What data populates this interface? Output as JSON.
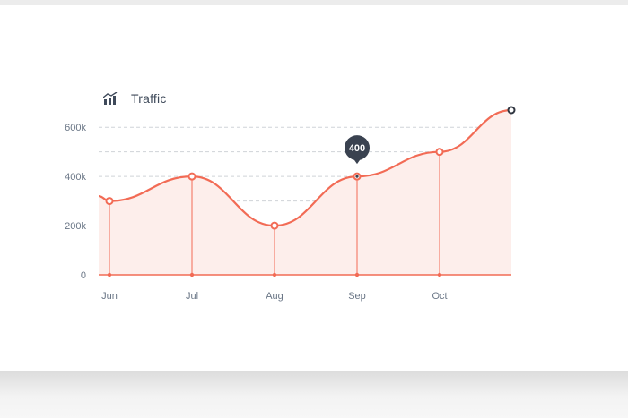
{
  "chart_title": "Traffic",
  "icons": {
    "header": "bar-chart-trend-icon"
  },
  "colors": {
    "line": "#f26b55",
    "fill": "#fdeeeb",
    "grid": "#cfd3d8",
    "tooltip": "#3a4250",
    "endpoint": "#2f3540"
  },
  "chart_data": {
    "type": "area",
    "title": "Traffic",
    "xlabel": "",
    "ylabel": "",
    "categories": [
      "Jun",
      "Jul",
      "Aug",
      "Sep",
      "Oct"
    ],
    "points": [
      {
        "x": "",
        "y": 320000
      },
      {
        "x": "Jun",
        "y": 300000
      },
      {
        "x": "Jul",
        "y": 400000
      },
      {
        "x": "Aug",
        "y": 200000
      },
      {
        "x": "Sep",
        "y": 400000
      },
      {
        "x": "Oct",
        "y": 500000
      },
      {
        "x": "",
        "y": 670000
      }
    ],
    "yticks": [
      {
        "value": 0,
        "label": "0"
      },
      {
        "value": 200000,
        "label": "200k"
      },
      {
        "value": 400000,
        "label": "400k"
      },
      {
        "value": 600000,
        "label": "600k"
      }
    ],
    "ylim": [
      0,
      670000
    ],
    "grid": true,
    "legend": "none",
    "annotation": {
      "category": "Sep",
      "label": "400"
    }
  }
}
